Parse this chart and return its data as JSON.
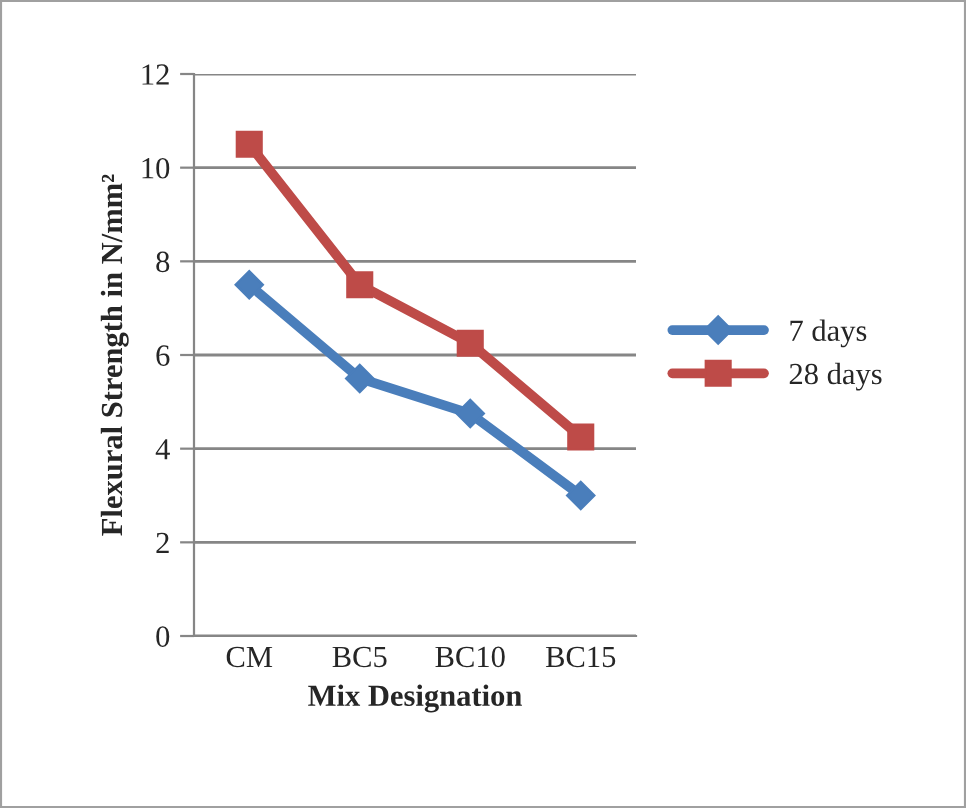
{
  "chart_data": {
    "type": "line",
    "xlabel": "Mix Designation",
    "ylabel": "Flexural Strength in N/mm²",
    "categories": [
      "CM",
      "BC5",
      "BC10",
      "BC15"
    ],
    "series": [
      {
        "name": "7 days",
        "color": "#4a7ebb",
        "values": [
          7.5,
          5.5,
          4.75,
          3.0
        ],
        "marker": "diamond"
      },
      {
        "name": "28 days",
        "color": "#be4b48",
        "values": [
          10.5,
          7.5,
          6.25,
          4.25
        ],
        "marker": "square"
      }
    ],
    "ylim": [
      0,
      12
    ],
    "yticks": [
      0,
      2,
      4,
      6,
      8,
      10,
      12
    ],
    "grid": "y",
    "legend": "right",
    "line_style": "solid"
  }
}
